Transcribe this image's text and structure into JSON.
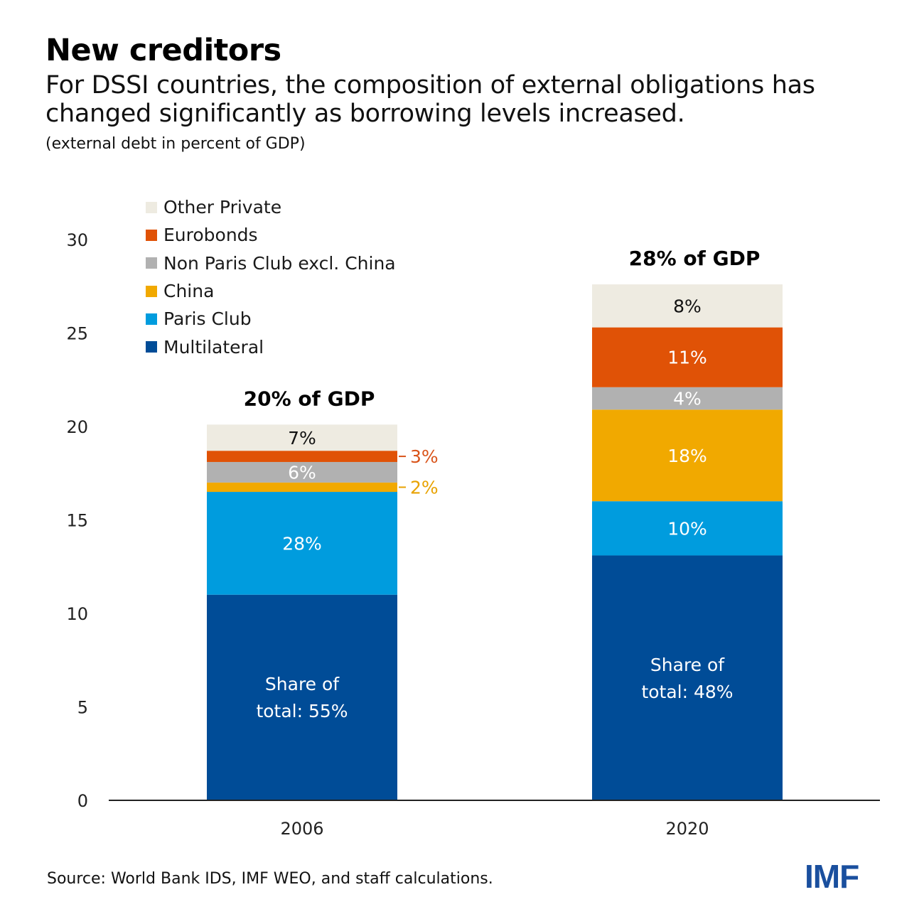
{
  "header": {
    "title": "New creditors",
    "subtitle": "For DSSI countries, the composition of external obligations has changed significantly as borrowing levels increased.",
    "units": "(external debt in percent of GDP)"
  },
  "footer": {
    "source": "Source: World Bank IDS, IMF WEO, and staff calculations.",
    "logo": "IMF"
  },
  "chart_data": {
    "type": "bar",
    "stacked": true,
    "title": "New creditors",
    "subtitle": "For DSSI countries, the composition of external obligations has changed significantly as borrowing levels increased.",
    "ylabel": "external debt in percent of GDP",
    "xlabel": "",
    "ylim": [
      0,
      30
    ],
    "yticks": [
      0,
      5,
      10,
      15,
      20,
      25,
      30
    ],
    "grid": false,
    "legend_position": "top-left",
    "categories": [
      "2006",
      "2020"
    ],
    "totals_labels": [
      "20% of GDP",
      "28% of GDP"
    ],
    "series": [
      {
        "name": "Multilateral",
        "color": "#004c97",
        "values": [
          11.0,
          13.1
        ],
        "labels": [
          "Share of total: 55%",
          "Share of total: 48%"
        ],
        "label_color": "#ffffff"
      },
      {
        "name": "Paris Club",
        "color": "#009cde",
        "values": [
          5.5,
          2.9
        ],
        "labels": [
          "28%",
          "10%"
        ],
        "label_color": "#ffffff"
      },
      {
        "name": "China",
        "color": "#f1a900",
        "values": [
          0.5,
          4.9
        ],
        "labels": [
          "2%",
          "18%"
        ],
        "label_color": "#ffffff",
        "outside_label_color": "#e8a200"
      },
      {
        "name": "Non Paris Club excl. China",
        "color": "#b1b1b1",
        "values": [
          1.1,
          1.2
        ],
        "labels": [
          "6%",
          "4%"
        ],
        "label_color": "#ffffff"
      },
      {
        "name": "Eurobonds",
        "color": "#e05206",
        "values": [
          0.6,
          3.2
        ],
        "labels": [
          "3%",
          "11%"
        ],
        "label_color": "#ffffff",
        "outside_label_color": "#d9541a"
      },
      {
        "name": "Other Private",
        "color": "#eeebe1",
        "values": [
          1.4,
          2.3
        ],
        "labels": [
          "7%",
          "8%"
        ],
        "label_color": "#111111"
      }
    ],
    "legend_order": [
      "Other Private",
      "Eurobonds",
      "Non Paris Club excl. China",
      "China",
      "Paris Club",
      "Multilateral"
    ]
  }
}
